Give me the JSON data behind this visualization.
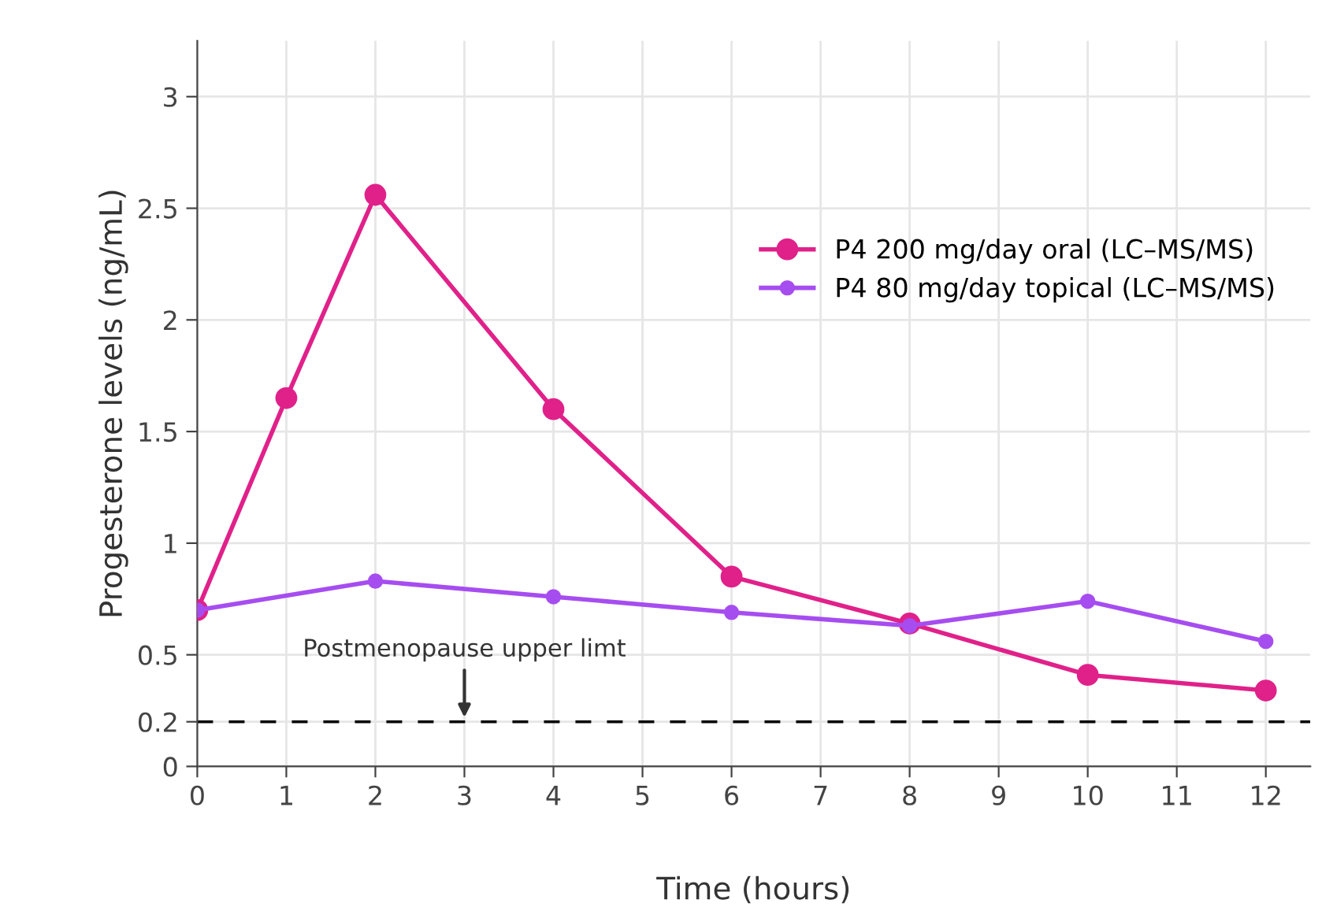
{
  "chart_data": {
    "type": "line",
    "xlabel": "Time (hours)",
    "ylabel": "Progesterone levels (ng/mL)",
    "series": [
      {
        "name": "P4 200 mg/day oral (LC–MS/MS)",
        "color": "#e0218a",
        "x": [
          0,
          1,
          2,
          4,
          6,
          8,
          10,
          12
        ],
        "values": [
          0.7,
          1.65,
          2.56,
          1.6,
          0.85,
          0.64,
          0.41,
          0.34
        ]
      },
      {
        "name": "P4 80 mg/day topical (LC–MS/MS)",
        "color": "#a64df0",
        "x": [
          0,
          2,
          4,
          6,
          8,
          10,
          12
        ],
        "values": [
          0.7,
          0.83,
          0.76,
          0.69,
          0.63,
          0.74,
          0.56
        ]
      }
    ],
    "xlim": [
      0,
      12.5
    ],
    "xticks": [
      0,
      1,
      2,
      3,
      4,
      5,
      6,
      7,
      8,
      9,
      10,
      11,
      12
    ],
    "ylim": [
      0,
      3.25
    ],
    "yticks": [
      0,
      0.2,
      0.5,
      1,
      1.5,
      2,
      2.5,
      3
    ],
    "ref_lines": [
      {
        "axis": "y",
        "value": 0.2,
        "color": "#000000",
        "line_style": "dashed"
      }
    ],
    "annotations": [
      {
        "text": "Postmenopause upper limt",
        "x": 3,
        "y": 0.2
      }
    ],
    "grid": true,
    "legend": "top right",
    "marker": "circle",
    "line_style": "solid"
  }
}
